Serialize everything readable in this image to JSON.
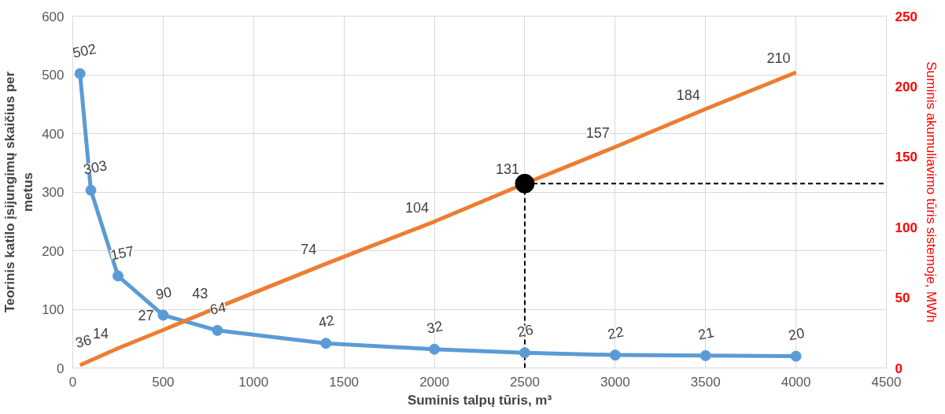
{
  "chart_data": {
    "type": "line",
    "xlabel": "Suminis talpų tūris, m³",
    "ylabel": "Teorinis katilo įsijungimų skaičius per metus",
    "y2label": "Suminis akumuliavimo tūris sistemoje, MWh",
    "xlim": [
      0,
      4500
    ],
    "xticks": [
      0,
      500,
      1000,
      1500,
      2000,
      2500,
      3000,
      3500,
      4000,
      4500
    ],
    "ylim": [
      0,
      600
    ],
    "yticks": [
      0,
      100,
      200,
      300,
      400,
      500,
      600
    ],
    "y2lim": [
      0,
      250
    ],
    "y2ticks": [
      0,
      50,
      100,
      150,
      200,
      250
    ],
    "grid": true,
    "data_labels": true,
    "series": [
      {
        "type": "line",
        "marker": "circle",
        "color": "#5b9bd5",
        "x": [
          40,
          100,
          250,
          500,
          800,
          1400,
          2000,
          2500,
          3000,
          3500,
          4000
        ],
        "values": [
          502,
          303,
          157,
          90,
          64,
          42,
          32,
          26,
          22,
          21,
          20
        ]
      },
      {
        "type": "line",
        "marker": "none",
        "axis": "y2",
        "color": "#ed7d31",
        "x": [
          40,
          250,
          500,
          800,
          1400,
          2000,
          2500,
          3000,
          3500,
          4000
        ],
        "values": [
          2,
          14,
          27,
          43,
          74,
          104,
          131,
          157,
          184,
          210
        ],
        "value_labels": [
          null,
          "14",
          "27",
          "43",
          "74",
          "104",
          "131",
          "157",
          "184",
          "210"
        ]
      },
      {
        "type": "scatter",
        "marker": "circle",
        "axis": "y2",
        "color": "#000000",
        "x": [
          2500
        ],
        "values": [
          131
        ],
        "value_labels": [
          null
        ]
      }
    ],
    "annotations": [
      "36"
    ],
    "ref_lines": [
      {
        "axis": "x",
        "value": 2500,
        "color": "#000000",
        "line_style": "dashed"
      },
      {
        "axis": "y2",
        "value": 131,
        "color": "#000000",
        "line_style": "dashed"
      }
    ]
  }
}
